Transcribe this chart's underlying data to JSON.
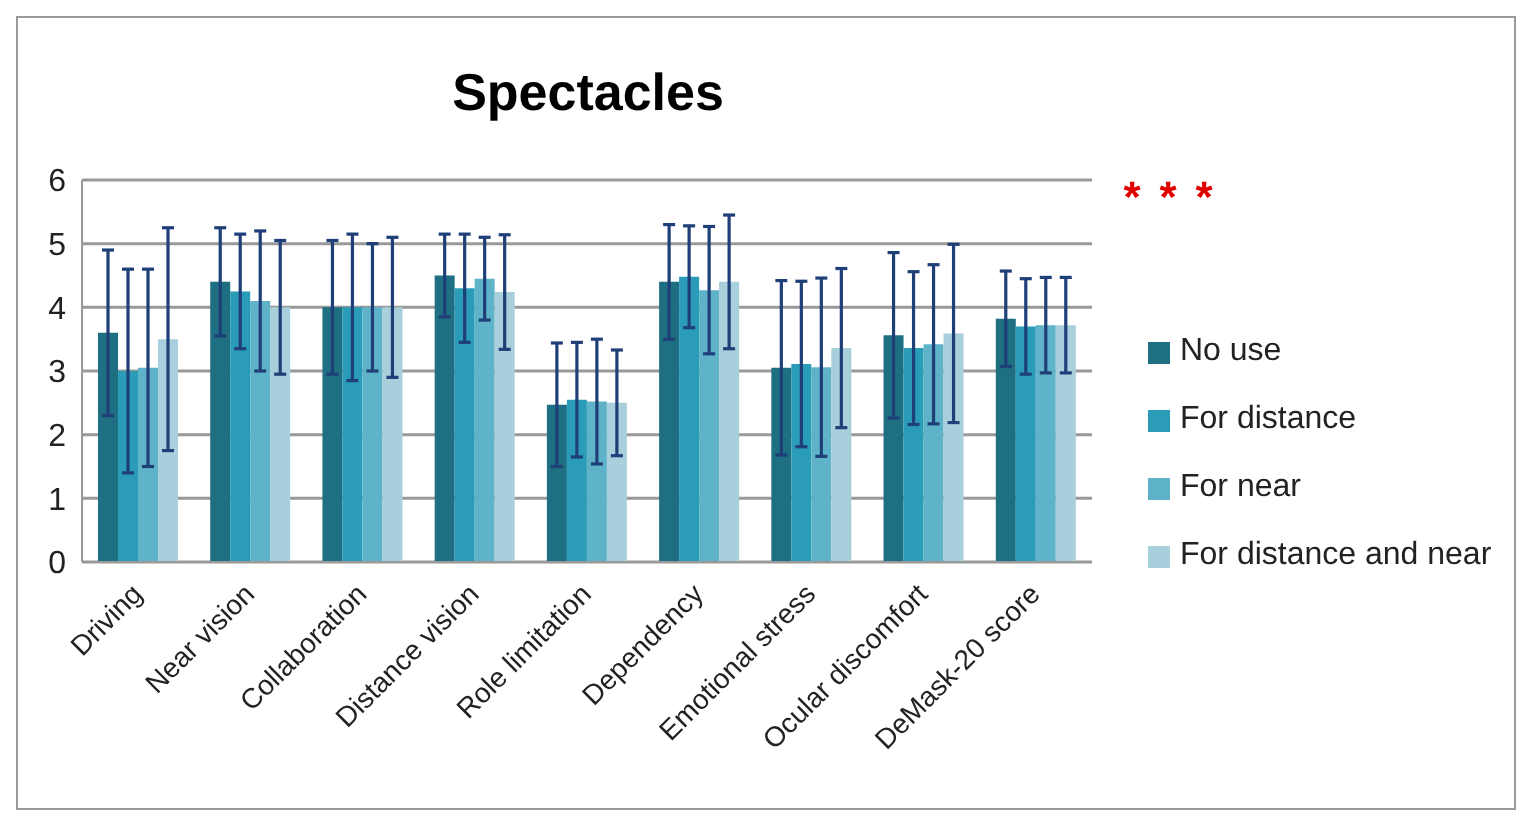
{
  "chart_data": {
    "type": "bar",
    "title": "Spectacles",
    "categories": [
      "Driving",
      "Near vision",
      "Collaboration",
      "Distance vision",
      "Role limitation",
      "Dependency",
      "Emotional stress",
      "Ocular discomfort",
      "DeMask-20 score"
    ],
    "series": [
      {
        "name": "No use",
        "color": "#1f6f82",
        "values": [
          3.6,
          4.4,
          4.0,
          4.5,
          2.47,
          4.4,
          3.05,
          3.56,
          3.82
        ],
        "errors": [
          1.3,
          0.85,
          1.05,
          0.65,
          0.97,
          0.9,
          1.37,
          1.3,
          0.75
        ]
      },
      {
        "name": "For distance",
        "color": "#2a9cb8",
        "values": [
          3.0,
          4.25,
          4.0,
          4.3,
          2.55,
          4.48,
          3.11,
          3.36,
          3.7
        ],
        "errors": [
          1.6,
          0.9,
          1.15,
          0.85,
          0.9,
          0.8,
          1.3,
          1.2,
          0.75
        ]
      },
      {
        "name": "For near",
        "color": "#5fb3c9",
        "values": [
          3.05,
          4.1,
          4.0,
          4.45,
          2.52,
          4.27,
          3.06,
          3.42,
          3.72
        ],
        "errors": [
          1.55,
          1.1,
          1.0,
          0.65,
          0.98,
          1.0,
          1.4,
          1.25,
          0.75
        ]
      },
      {
        "name": "For distance and near",
        "color": "#a8cfdc",
        "values": [
          3.5,
          4.0,
          4.0,
          4.24,
          2.5,
          4.4,
          3.36,
          3.59,
          3.72
        ],
        "errors": [
          1.75,
          1.05,
          1.1,
          0.9,
          0.83,
          1.05,
          1.25,
          1.4,
          0.75
        ]
      }
    ],
    "annotations": [
      "*",
      "*",
      "*"
    ],
    "ylim": [
      0,
      6
    ],
    "yticks": [
      0,
      1,
      2,
      3,
      4,
      5,
      6
    ],
    "grid": "y",
    "legend": "right"
  }
}
